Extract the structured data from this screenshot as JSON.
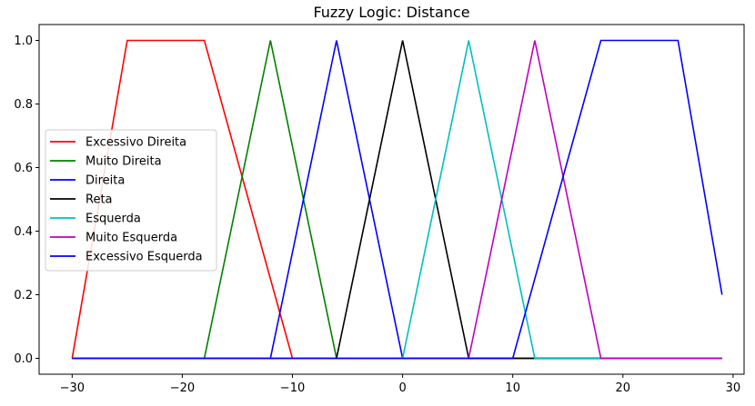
{
  "chart_data": {
    "type": "line",
    "title": "Fuzzy Logic: Distance",
    "xlabel": "",
    "ylabel": "",
    "xlim": [
      -33,
      31
    ],
    "ylim": [
      -0.05,
      1.05
    ],
    "xticks": [
      -30,
      -20,
      -10,
      0,
      10,
      20,
      30
    ],
    "xtick_labels": [
      "−30",
      "−20",
      "−10",
      "0",
      "10",
      "20",
      "30"
    ],
    "yticks": [
      0.0,
      0.2,
      0.4,
      0.6,
      0.8,
      1.0
    ],
    "ytick_labels": [
      "0.0",
      "0.2",
      "0.4",
      "0.6",
      "0.8",
      "1.0"
    ],
    "grid": false,
    "legend_position": "center-left",
    "series": [
      {
        "name": "Excessivo Direita",
        "color": "#ff0000",
        "x": [
          -30,
          -25,
          -18,
          -10,
          29
        ],
        "y": [
          0,
          1,
          1,
          0,
          0
        ]
      },
      {
        "name": "Muito Direita",
        "color": "#008000",
        "x": [
          -30,
          -18,
          -12,
          -6,
          29
        ],
        "y": [
          0,
          0,
          1,
          0,
          0
        ]
      },
      {
        "name": "Direita",
        "color": "#0000ff",
        "x": [
          -30,
          -12,
          -6,
          0,
          29
        ],
        "y": [
          0,
          0,
          1,
          0,
          0
        ]
      },
      {
        "name": "Reta",
        "color": "#000000",
        "x": [
          -30,
          -6,
          0,
          6,
          29
        ],
        "y": [
          0,
          0,
          1,
          0,
          0
        ]
      },
      {
        "name": "Esquerda",
        "color": "#00bfbf",
        "x": [
          -30,
          0,
          6,
          12,
          29
        ],
        "y": [
          0,
          0,
          1,
          0,
          0
        ]
      },
      {
        "name": "Muito Esquerda",
        "color": "#bf00bf",
        "x": [
          -30,
          6,
          12,
          18,
          29
        ],
        "y": [
          0,
          0,
          1,
          0,
          0
        ]
      },
      {
        "name": "Excessivo Esquerda",
        "color": "#0000ff",
        "x": [
          -30,
          10,
          18,
          25,
          29
        ],
        "y": [
          0,
          0,
          1,
          1,
          0.2
        ]
      }
    ]
  }
}
